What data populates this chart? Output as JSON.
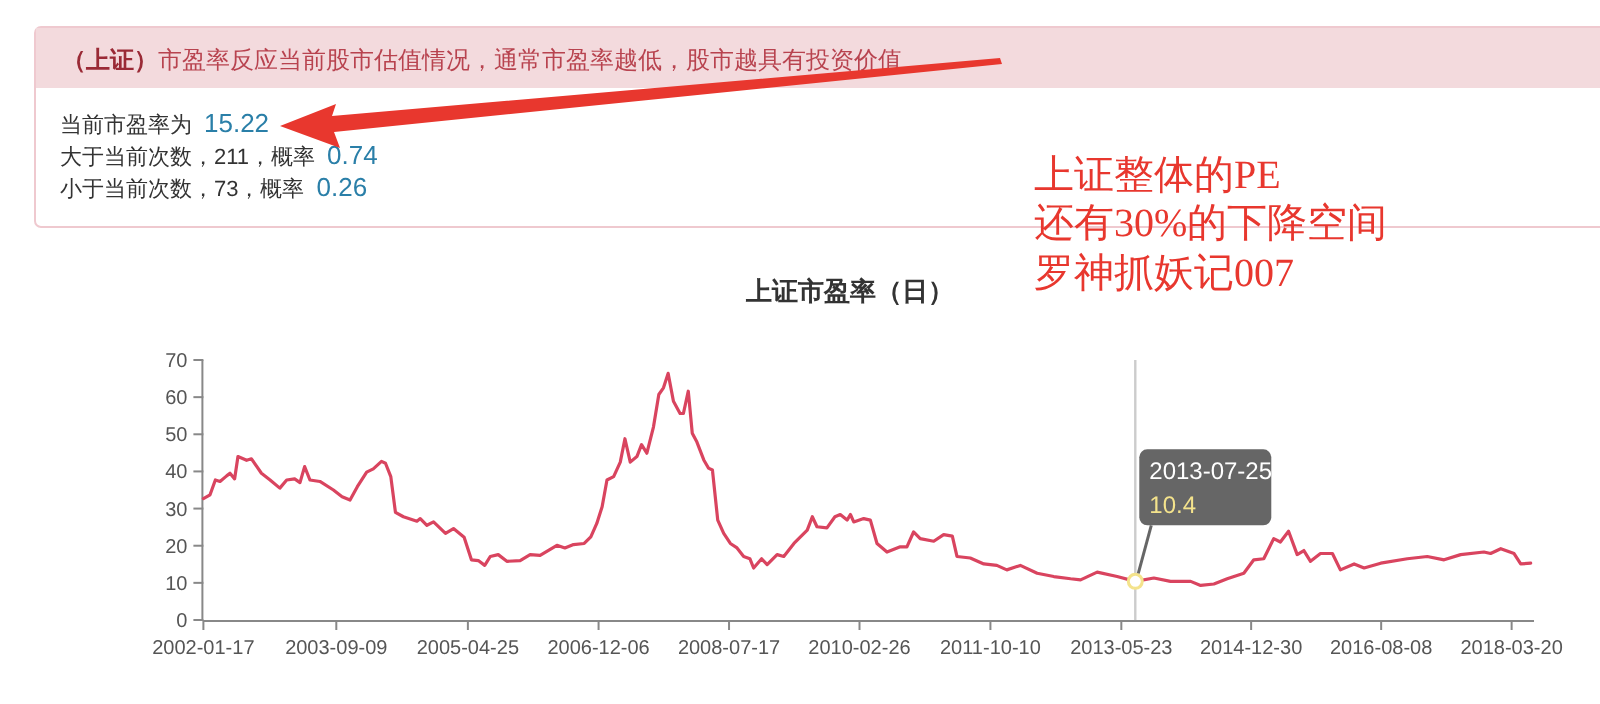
{
  "chart_data": {
    "type": "line",
    "title": "上证市盈率（日）",
    "x": [
      "2002-01-17",
      "2002-02-16",
      "2002-03-12",
      "2002-04-02",
      "2002-05-02",
      "2002-05-17",
      "2002-06-07",
      "2002-06-22",
      "2002-07-31",
      "2002-08-22",
      "2002-10-06",
      "2002-11-14",
      "2002-12-28",
      "2003-01-28",
      "2003-03-05",
      "2003-03-29",
      "2003-04-19",
      "2003-05-13",
      "2003-06-27",
      "2003-08-27",
      "2003-10-05",
      "2003-11-10",
      "2003-12-13",
      "2004-01-24",
      "2004-02-23",
      "2004-03-31",
      "2004-04-18",
      "2004-05-12",
      "2004-06-02",
      "2004-07-08",
      "2004-09-07",
      "2004-09-22",
      "2004-10-22",
      "2004-11-21",
      "2005-01-14",
      "2005-02-19",
      "2005-04-08",
      "2005-05-11",
      "2005-06-11",
      "2005-07-10",
      "2005-08-04",
      "2005-09-09",
      "2005-10-18",
      "2005-12-17",
      "2006-01-31",
      "2006-03-17",
      "2006-06-01",
      "2006-07-07",
      "2006-08-15",
      "2006-10-02",
      "2006-11-01",
      "2006-11-28",
      "2006-12-22",
      "2007-01-13",
      "2007-02-12",
      "2007-03-14",
      "2007-04-04",
      "2007-04-28",
      "2007-05-28",
      "2007-06-18",
      "2007-07-12",
      "2007-08-11",
      "2007-09-04",
      "2007-09-25",
      "2007-10-16",
      "2007-11-09",
      "2007-12-09",
      "2007-12-24",
      "2008-01-15",
      "2008-02-02",
      "2008-02-23",
      "2008-03-25",
      "2008-04-15",
      "2008-05-03",
      "2008-05-27",
      "2008-06-23",
      "2008-07-23",
      "2008-08-22",
      "2008-09-21",
      "2008-10-19",
      "2008-11-05",
      "2008-12-11",
      "2009-01-05",
      "2009-02-19",
      "2009-03-21",
      "2009-05-06",
      "2009-07-05",
      "2009-07-28",
      "2009-08-18",
      "2009-10-02",
      "2009-11-07",
      "2009-12-01",
      "2010-01-01",
      "2010-01-16",
      "2010-01-31",
      "2010-03-17",
      "2010-04-16",
      "2010-05-16",
      "2010-06-30",
      "2010-08-29",
      "2010-09-28",
      "2010-10-28",
      "2010-11-27",
      "2011-01-27",
      "2011-03-13",
      "2011-04-21",
      "2011-05-12",
      "2011-07-11",
      "2011-09-10",
      "2011-11-08",
      "2011-12-23",
      "2012-02-22",
      "2012-05-08",
      "2012-07-22",
      "2012-10-06",
      "2012-11-20",
      "2013-02-03",
      "2013-05-04",
      "2013-07-25",
      "2013-10-17",
      "2013-12-31",
      "2014-04-01",
      "2014-05-16",
      "2014-07-15",
      "2014-09-13",
      "2014-11-27",
      "2015-01-11",
      "2015-02-25",
      "2015-04-11",
      "2015-05-11",
      "2015-06-17",
      "2015-07-26",
      "2015-08-25",
      "2015-09-24",
      "2015-11-08",
      "2016-01-01",
      "2016-02-06",
      "2016-04-08",
      "2016-05-23",
      "2016-08-06",
      "2016-12-04",
      "2017-03-04",
      "2017-05-19",
      "2017-08-02",
      "2017-11-15",
      "2017-12-15",
      "2018-01-30",
      "2018-03-31",
      "2018-04-30",
      "2018-06-14"
    ],
    "series": [
      {
        "color": "#d9445f",
        "values": [
          32.7,
          33.7,
          37.7,
          37.3,
          38.8,
          39.5,
          38,
          44,
          43,
          43.4,
          39.5,
          37.7,
          35.5,
          37.7,
          38,
          37,
          41.3,
          37.7,
          37.3,
          35,
          33.2,
          32.3,
          35.9,
          39.8,
          40.7,
          42.7,
          42.2,
          38.6,
          29,
          27.8,
          26.6,
          27.3,
          25.5,
          26.4,
          23.3,
          24.6,
          22.3,
          16.2,
          16,
          14.7,
          17.1,
          17.6,
          15.8,
          16,
          17.6,
          17.4,
          20.1,
          19.4,
          20.3,
          20.6,
          22.4,
          26,
          30.5,
          37.7,
          38.6,
          42.5,
          48.8,
          42.5,
          44,
          47.2,
          44.9,
          52,
          60.7,
          62.5,
          66.4,
          58.9,
          55.6,
          55.6,
          61.6,
          50.3,
          47.9,
          43.1,
          40.9,
          40.4,
          26.9,
          23.3,
          20.6,
          19.4,
          17.1,
          16.5,
          14,
          16.5,
          14.9,
          17.6,
          17.1,
          20.6,
          24.2,
          27.8,
          25.1,
          24.8,
          27.8,
          28.4,
          26.9,
          28.4,
          26.4,
          27.3,
          26.9,
          20.6,
          18.3,
          19.7,
          19.7,
          23.7,
          21.9,
          21.2,
          23,
          22.6,
          17.1,
          16.7,
          15.1,
          14.7,
          13.5,
          14.7,
          12.6,
          11.7,
          11.1,
          10.8,
          12.9,
          11.7,
          10.4,
          11.3,
          10.4,
          10.4,
          9.3,
          9.7,
          11.1,
          12.6,
          16.2,
          16.5,
          21.9,
          21,
          23.9,
          17.6,
          18.7,
          15.8,
          17.9,
          17.9,
          13.5,
          15.1,
          14,
          15.3,
          16.5,
          17.1,
          16.2,
          17.6,
          18.3,
          17.9,
          19.2,
          17.9,
          15.1,
          15.3
        ]
      }
    ],
    "xlim": [
      "2002-01-17",
      "2018-06-29"
    ],
    "xticks": [
      "2002-01-17",
      "2003-09-09",
      "2005-04-25",
      "2006-12-06",
      "2008-07-17",
      "2010-02-26",
      "2011-10-10",
      "2013-05-23",
      "2014-12-30",
      "2016-08-08",
      "2018-03-20"
    ],
    "ylim": [
      0,
      70
    ],
    "yticks": [
      0,
      10,
      20,
      30,
      40,
      50,
      60,
      70
    ],
    "ref_lines": [
      {
        "axis": "x",
        "value": "2013-07-25",
        "color": "#cccccc"
      }
    ],
    "annotations": [
      "（上证）",
      "市盈率反应当前股市估值情况，通常市盈率越低，股市越具有投资价值",
      "当前市盈率为",
      "15.22",
      "大于当前次数，211，概率",
      "0.74",
      "小于当前次数，73，概率",
      "0.26",
      "上证整体的PE",
      "还有30%的下降空间",
      "罗神抓妖记007",
      "2013-07-25",
      {
        "text": "10.4",
        "x": "2013-07-25",
        "y": 10.4
      }
    ]
  }
}
